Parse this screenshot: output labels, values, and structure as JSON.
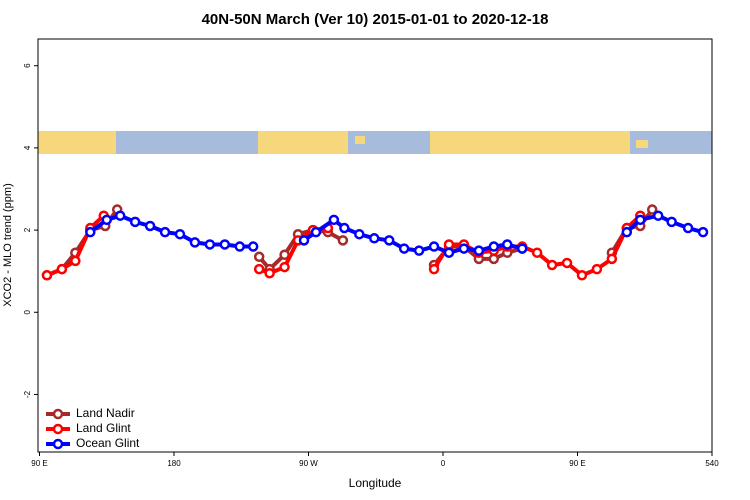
{
  "chart_data": {
    "type": "line",
    "title": "40N-50N March (Ver 10)   2015-01-01 to 2020-12-18",
    "xlabel": "Longitude",
    "ylabel": "XCO2 - MLO trend (ppm)",
    "xlim": [
      89,
      540
    ],
    "ylim": [
      -3.4,
      6.65
    ],
    "xticks": [
      {
        "value": 90,
        "label": "90 E"
      },
      180,
      {
        "value": 270,
        "label": "90 W"
      },
      {
        "value": 360,
        "label": "0"
      },
      {
        "value": 450,
        "label": "90 E"
      },
      540
    ],
    "yticks": [
      -2,
      0,
      2,
      4,
      6
    ],
    "legend": "lower left",
    "series": [
      {
        "name": "Land Nadir",
        "color": "#a52a2a",
        "x": [
          95,
          105,
          114,
          124,
          134,
          142,
          null,
          237,
          244,
          254,
          263,
          273,
          283,
          293,
          null,
          354,
          364,
          374,
          384,
          394,
          403,
          413,
          null,
          473,
          483,
          492,
          500
        ],
        "values": [
          0.9,
          1.05,
          1.45,
          2.0,
          2.1,
          2.5,
          null,
          1.35,
          1.05,
          1.4,
          1.9,
          2.0,
          1.95,
          1.75,
          null,
          1.15,
          1.6,
          1.6,
          1.3,
          1.3,
          1.45,
          1.55,
          null,
          1.45,
          2.05,
          2.1,
          2.5
        ]
      },
      {
        "name": "Land Glint",
        "color": "#ff0000",
        "x": [
          95,
          105,
          114,
          124,
          133,
          null,
          237,
          244,
          254,
          263,
          273,
          283,
          null,
          354,
          364,
          374,
          384,
          394,
          403,
          413,
          423,
          433,
          443,
          453,
          463,
          473,
          483,
          492
        ],
        "values": [
          0.9,
          1.05,
          1.25,
          2.05,
          2.35,
          null,
          1.05,
          0.95,
          1.1,
          1.75,
          2.0,
          2.05,
          null,
          1.05,
          1.65,
          1.65,
          1.45,
          1.5,
          1.6,
          1.6,
          1.45,
          1.15,
          1.2,
          0.9,
          1.05,
          1.3,
          2.05,
          2.35
        ]
      },
      {
        "name": "Ocean Glint",
        "color": "#0000ff",
        "x": [
          124,
          135,
          144,
          154,
          164,
          174,
          184,
          194,
          204,
          214,
          224,
          233,
          null,
          267,
          275,
          287,
          294,
          304,
          314,
          324,
          334,
          344,
          354,
          364,
          374,
          384,
          394,
          403,
          413,
          null,
          483,
          492,
          504,
          513,
          524,
          534
        ],
        "values": [
          1.95,
          2.25,
          2.35,
          2.2,
          2.1,
          1.95,
          1.9,
          1.7,
          1.65,
          1.65,
          1.6,
          1.6,
          null,
          1.75,
          1.95,
          2.25,
          2.05,
          1.9,
          1.8,
          1.75,
          1.55,
          1.5,
          1.6,
          1.45,
          1.55,
          1.5,
          1.6,
          1.65,
          1.55,
          null,
          1.95,
          2.25,
          2.35,
          2.2,
          2.05,
          1.95
        ]
      }
    ]
  }
}
